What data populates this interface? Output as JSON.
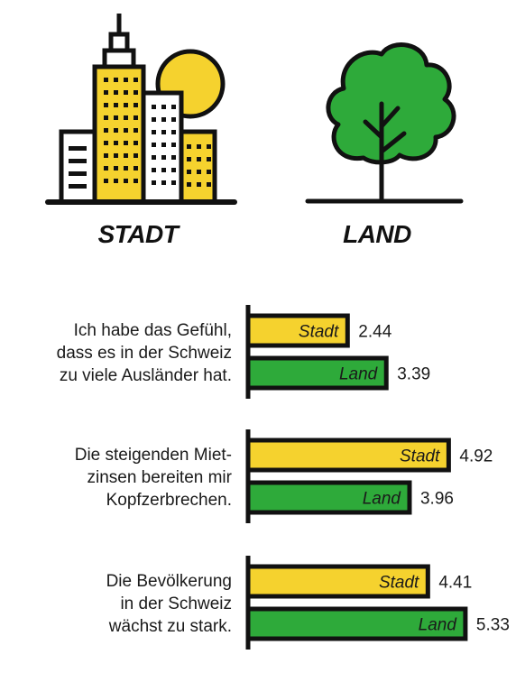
{
  "headings": {
    "city": "STADT",
    "country": "LAND"
  },
  "colors": {
    "stadt": "#F5D22E",
    "land": "#2EAA3A",
    "outline": "#111111"
  },
  "icons": {
    "city": "city-skyline-sun-icon",
    "country": "tree-icon"
  },
  "chart_data": {
    "type": "bar",
    "orientation": "horizontal",
    "categories": [
      [
        "Ich habe das Gefühl,",
        "dass es in der Schweiz",
        "zu viele Ausländer hat."
      ],
      [
        "Die steigenden Miet-",
        "zinsen bereiten mir",
        "Kopfzerbrechen."
      ],
      [
        "Die Bevölkerung",
        "in der Schweiz",
        "wächst zu stark."
      ]
    ],
    "series": [
      {
        "name": "Stadt",
        "values": [
          2.44,
          4.92,
          4.41
        ],
        "labels": [
          "2.44",
          "4.92",
          "4.41"
        ]
      },
      {
        "name": "Land",
        "values": [
          3.39,
          3.96,
          5.33
        ],
        "labels": [
          "3.39",
          "3.96",
          "5.33"
        ]
      }
    ]
  }
}
